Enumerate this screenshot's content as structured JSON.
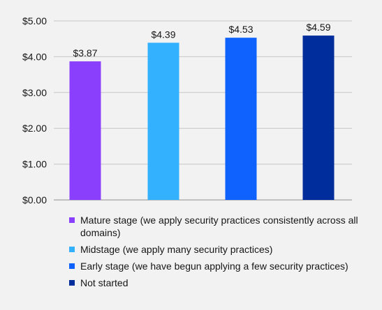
{
  "chart_data": {
    "type": "bar",
    "categories": [
      "Mature stage (we apply security practices consistently across all domains)",
      "Midstage (we apply many security practices)",
      "Early stage (we have begun applying a few security practices)",
      "Not started"
    ],
    "values": [
      3.87,
      4.39,
      4.53,
      4.59
    ],
    "data_labels": [
      "$3.87",
      "$4.39",
      "$4.53",
      "$4.59"
    ],
    "colors": [
      "#8a3ffc",
      "#33b1ff",
      "#0f62fe",
      "#002d9c"
    ],
    "title": "",
    "xlabel": "",
    "ylabel": "",
    "ylim": [
      0,
      5
    ],
    "yticks": [
      0,
      1,
      2,
      3,
      4,
      5
    ],
    "ytick_labels": [
      "$0.00",
      "$1.00",
      "$2.00",
      "$3.00",
      "$4.00",
      "$5.00"
    ],
    "grid": true,
    "legend_position": "bottom"
  }
}
